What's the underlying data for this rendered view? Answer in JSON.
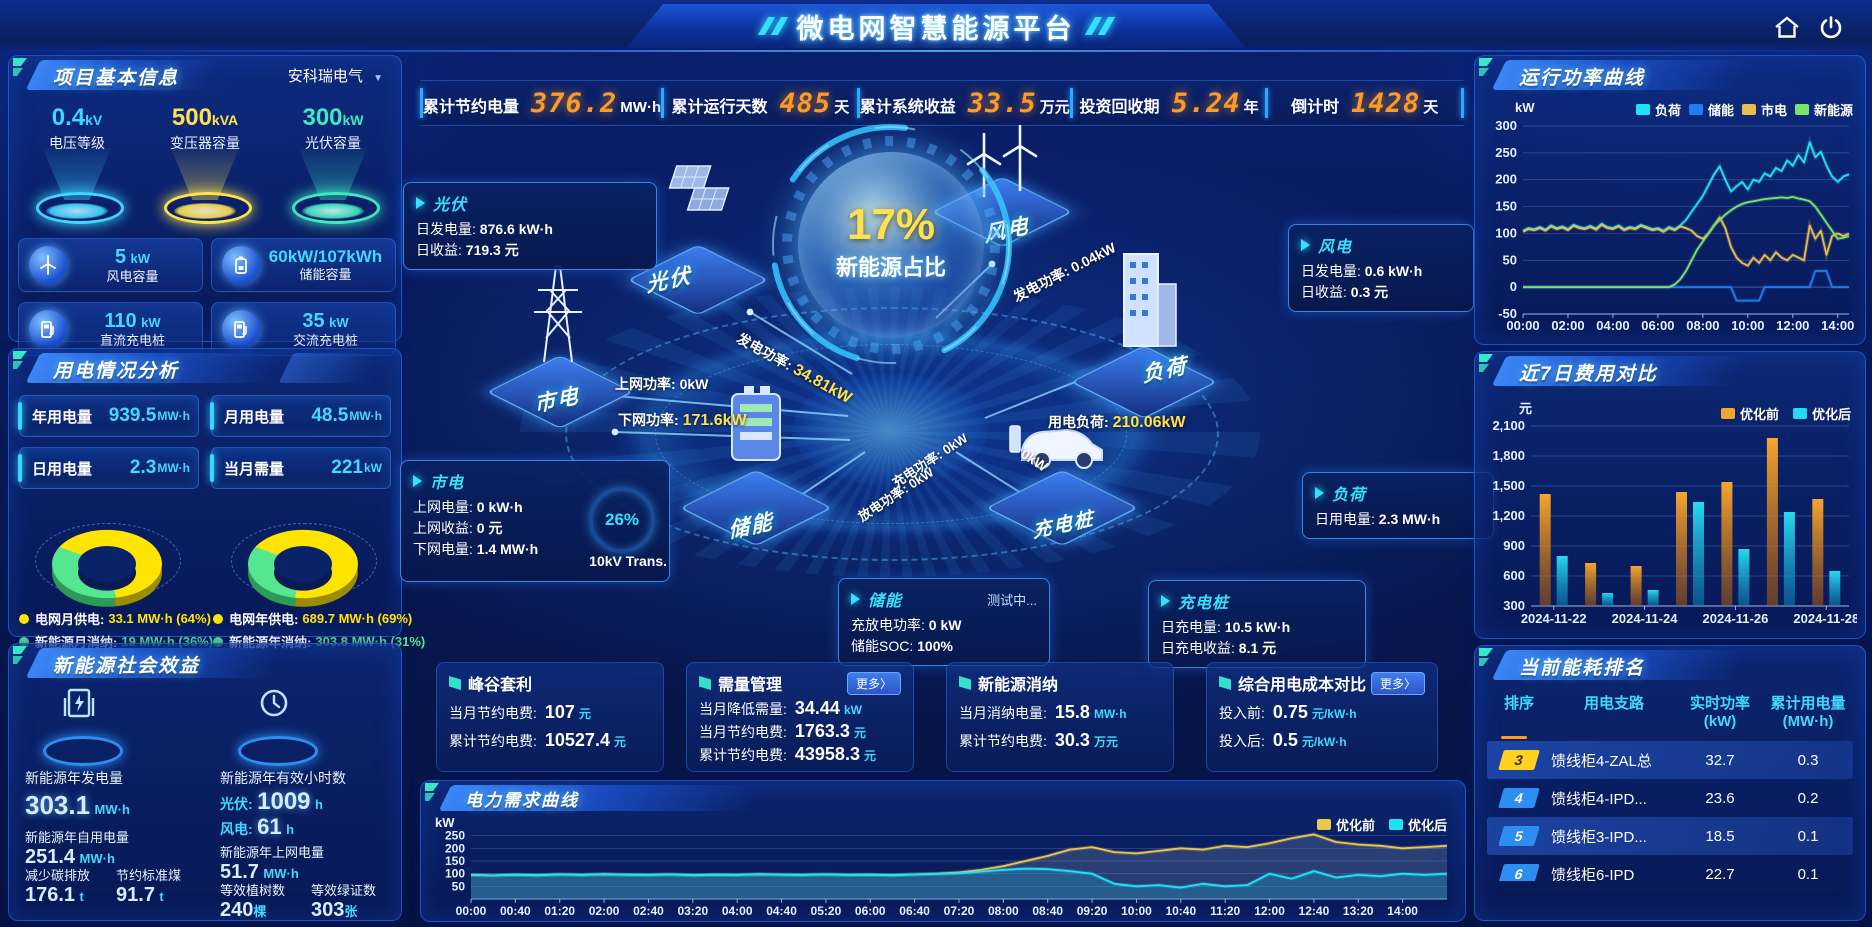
{
  "header": {
    "title": "微电网智慧能源平台"
  },
  "top_stats": [
    {
      "label": "累计节约电量",
      "value": "376.2",
      "unit": "MW·h"
    },
    {
      "label": "累计运行天数",
      "value": "485",
      "unit": "天"
    },
    {
      "label": "累计系统收益",
      "value": "33.5",
      "unit": "万元"
    },
    {
      "label": "投资回收期",
      "value": "5.24",
      "unit": "年"
    },
    {
      "label": "倒计时",
      "value": "1428",
      "unit": "天"
    }
  ],
  "project_info": {
    "title": "项目基本信息",
    "company": "安科瑞电气",
    "pedestals": [
      {
        "value": "0.4",
        "unit": "kV",
        "label": "电压等级",
        "color": "#3fd6ff"
      },
      {
        "value": "500",
        "unit": "kVA",
        "label": "变压器容量",
        "color": "#ffe14d"
      },
      {
        "value": "300",
        "unit": "kW",
        "label": "光伏容量",
        "color": "#3fe8c0"
      }
    ],
    "cards": [
      {
        "value": "5",
        "unit": "kW",
        "label": "风电容量"
      },
      {
        "value": "60kW/107kWh",
        "unit": "",
        "label": "储能容量"
      },
      {
        "value": "110",
        "unit": "kW",
        "label": "直流充电桩"
      },
      {
        "value": "35",
        "unit": "kW",
        "label": "交流充电桩"
      }
    ]
  },
  "power_usage": {
    "title": "用电情况分析",
    "stats": [
      {
        "label": "年用电量",
        "value": "939.5",
        "unit": "MW·h"
      },
      {
        "label": "月用电量",
        "value": "48.5",
        "unit": "MW·h"
      },
      {
        "label": "日用电量",
        "value": "2.3",
        "unit": "MW·h"
      },
      {
        "label": "当月需量",
        "value": "221",
        "unit": "kW"
      }
    ],
    "month_legend": [
      {
        "label": "电网月供电:",
        "value": "33.1 MW·h (64%)",
        "color": "#ffe400"
      },
      {
        "label": "新能源月消纳:",
        "value": "19 MW·h (36%)",
        "color": "#57e690"
      }
    ],
    "year_legend": [
      {
        "label": "电网年供电:",
        "value": "689.7 MW·h (69%)",
        "color": "#ffe400"
      },
      {
        "label": "新能源年消纳:",
        "value": "303.8 MW·h (31%)",
        "color": "#57e690"
      }
    ]
  },
  "social": {
    "title": "新能源社会效益",
    "gen_label": "新能源年发电量",
    "gen_value": "303.1",
    "gen_unit": "MW·h",
    "hours_label": "新能源年有效小时数",
    "pv_label": "光伏:",
    "pv_value": "1009",
    "pv_unit": "h",
    "wind_label": "风电:",
    "wind_value": "61",
    "wind_unit": "h",
    "self_label": "新能源年自用电量",
    "self_value": "251.4",
    "self_unit": "MW·h",
    "co2_label": "减少碳排放",
    "co2_value": "176.1",
    "co2_unit": "t",
    "coal_label": "节约标准煤",
    "coal_value": "91.7",
    "coal_unit": "t",
    "export_label": "新能源年上网电量",
    "export_value": "51.7",
    "export_unit": "MW·h",
    "tree_label": "等效植树数",
    "tree_value": "240",
    "tree_unit": "棵",
    "cert_label": "等效绿证数",
    "cert_value": "303",
    "cert_unit": "张"
  },
  "diagram": {
    "center_value": "17%",
    "center_label": "新能源占比",
    "nodes": {
      "pv": "光伏",
      "wind": "风电",
      "grid": "市电",
      "load": "负荷",
      "storage": "储能",
      "charger": "充电桩"
    },
    "flows": {
      "pv_gen": {
        "label": "发电功率:",
        "value": "34.81kW"
      },
      "up": {
        "label": "上网功率:",
        "value": "0kW"
      },
      "down": {
        "label": "下网功率:",
        "value": "171.6kW"
      },
      "wind_gen": {
        "label": "发电功率:",
        "value": "0.04kW"
      },
      "load": {
        "label": "用电负荷:",
        "value": "210.06kW"
      },
      "charge": {
        "label": "充电功率:",
        "value": "0kW"
      },
      "discharge": {
        "label": "放电功率:",
        "value": "0kW"
      },
      "ev": {
        "label": "",
        "value": "0kW"
      }
    },
    "boxes": {
      "pv": {
        "title": "光伏",
        "r1l": "日发电量:",
        "r1v": "876.6 kW·h",
        "r2l": "日收益:",
        "r2v": "719.3 元"
      },
      "wind": {
        "title": "风电",
        "r1l": "日发电量:",
        "r1v": "0.6 kW·h",
        "r2l": "日收益:",
        "r2v": "0.3 元"
      },
      "grid": {
        "title": "市电",
        "r1l": "上网电量:",
        "r1v": "0 kW·h",
        "r2l": "上网收益:",
        "r2v": "0 元",
        "r3l": "下网电量:",
        "r3v": "1.4 MW·h"
      },
      "load": {
        "title": "负荷",
        "r1l": "日用电量:",
        "r1v": "2.3 MW·h"
      },
      "storage": {
        "title": "储能",
        "badge": "测试中...",
        "r1l": "充放电功率:",
        "r1v": "0 kW",
        "r2l": "储能SOC:",
        "r2v": "100%"
      },
      "charger": {
        "title": "充电桩",
        "r1l": "日充电量:",
        "r1v": "10.5 kW·h",
        "r2l": "日充电收益:",
        "r2v": "8.1 元"
      }
    },
    "transformer": {
      "percent": "26%",
      "label": "10kV Trans."
    }
  },
  "benefit_boxes": [
    {
      "title": "峰谷套利",
      "rows": [
        {
          "label": "当月节约电费:",
          "value": "107",
          "unit": "元"
        },
        {
          "label": "累计节约电费:",
          "value": "10527.4",
          "unit": "元"
        }
      ]
    },
    {
      "title": "需量管理",
      "more": "更多〉",
      "rows": [
        {
          "label": "当月降低需量:",
          "value": "34.44",
          "unit": "kW"
        },
        {
          "label": "当月节约电费:",
          "value": "1763.3",
          "unit": "元"
        },
        {
          "label": "累计节约电费:",
          "value": "43958.3",
          "unit": "元"
        }
      ]
    },
    {
      "title": "新能源消纳",
      "rows": [
        {
          "label": "当月消纳电量:",
          "value": "15.8",
          "unit": "MW·h"
        },
        {
          "label": "累计节约电费:",
          "value": "30.3",
          "unit": "万元"
        }
      ]
    },
    {
      "title": "综合用电成本对比",
      "more": "更多〉",
      "rows": [
        {
          "label": "投入前:",
          "value": "0.75",
          "unit": "元/kW·h"
        },
        {
          "label": "投入后:",
          "value": "0.5",
          "unit": "元/kW·h"
        }
      ]
    }
  ],
  "panels": {
    "run_power": "运行功率曲线",
    "cost": "近7日费用对比",
    "ranking": "当前能耗排名",
    "demand": "电力需求曲线"
  },
  "ranking": {
    "headers": [
      {
        "t": "排序",
        "u": ""
      },
      {
        "t": "用电支路",
        "u": ""
      },
      {
        "t": "实时功率",
        "u": "(kW)"
      },
      {
        "t": "累计用电量",
        "u": "(MW·h)"
      }
    ],
    "rows": [
      {
        "rank": "3",
        "branch": "馈线柜4-ZAL总",
        "power": "32.7",
        "energy": "0.3"
      },
      {
        "rank": "4",
        "branch": "馈线柜4-IPD...",
        "power": "23.6",
        "energy": "0.2"
      },
      {
        "rank": "5",
        "branch": "馈线柜3-IPD...",
        "power": "18.5",
        "energy": "0.1"
      },
      {
        "rank": "6",
        "branch": "馈线柜6-IPD",
        "power": "22.7",
        "energy": "0.1"
      }
    ]
  },
  "chart_data": [
    {
      "id": "run-power",
      "type": "line",
      "title": "运行功率曲线",
      "ylabel": "kW",
      "ylim": [
        -50,
        300
      ],
      "yticks": [
        300,
        250,
        200,
        150,
        100,
        50,
        0,
        -50
      ],
      "grid": true,
      "legend_position": "top",
      "xticks": [
        {
          "i": 0,
          "label": "00:00"
        },
        {
          "i": 8,
          "label": "02:00"
        },
        {
          "i": 16,
          "label": "04:00"
        },
        {
          "i": 24,
          "label": "06:00"
        },
        {
          "i": 32,
          "label": "08:00"
        },
        {
          "i": 40,
          "label": "10:00"
        },
        {
          "i": 48,
          "label": "12:00"
        },
        {
          "i": 56,
          "label": "14:00"
        }
      ],
      "series": [
        {
          "name": "负荷",
          "color": "#1ee3f7",
          "values": [
            105,
            110,
            108,
            112,
            107,
            115,
            110,
            113,
            108,
            116,
            112,
            110,
            114,
            109,
            118,
            112,
            110,
            115,
            108,
            112,
            110,
            116,
            112,
            108,
            110,
            105,
            112,
            108,
            115,
            125,
            140,
            155,
            170,
            190,
            210,
            225,
            200,
            178,
            188,
            196,
            182,
            200,
            196,
            212,
            206,
            222,
            216,
            236,
            226,
            246,
            232,
            270,
            242,
            252,
            226,
            206,
            196,
            206,
            210
          ]
        },
        {
          "name": "储能",
          "color": "#1f7df2",
          "values": [
            0,
            0,
            0,
            0,
            0,
            0,
            0,
            0,
            0,
            0,
            0,
            0,
            0,
            0,
            0,
            0,
            0,
            0,
            0,
            0,
            0,
            0,
            0,
            0,
            0,
            0,
            0,
            0,
            0,
            0,
            0,
            0,
            0,
            0,
            0,
            0,
            0,
            0,
            -25,
            -25,
            -25,
            -25,
            -25,
            0,
            0,
            0,
            0,
            0,
            0,
            0,
            0,
            0,
            30,
            30,
            30,
            0,
            0,
            0,
            0
          ]
        },
        {
          "name": "市电",
          "color": "#e9bd4e",
          "values": [
            103,
            108,
            106,
            110,
            105,
            113,
            108,
            111,
            106,
            114,
            110,
            108,
            112,
            107,
            116,
            110,
            108,
            113,
            106,
            110,
            108,
            114,
            110,
            106,
            108,
            103,
            110,
            106,
            113,
            110,
            105,
            95,
            90,
            100,
            115,
            130,
            110,
            75,
            55,
            45,
            40,
            55,
            45,
            60,
            50,
            65,
            55,
            50,
            60,
            55,
            50,
            115,
            90,
            105,
            60,
            95,
            100,
            95,
            100
          ]
        },
        {
          "name": "新能源",
          "color": "#7be36b",
          "values": [
            0,
            0,
            0,
            0,
            0,
            0,
            0,
            0,
            0,
            0,
            0,
            0,
            0,
            0,
            0,
            0,
            0,
            0,
            0,
            0,
            0,
            0,
            0,
            0,
            0,
            0,
            0,
            5,
            15,
            30,
            50,
            70,
            85,
            100,
            115,
            125,
            135,
            143,
            150,
            155,
            158,
            160,
            162,
            164,
            165,
            166,
            167,
            166,
            168,
            165,
            163,
            160,
            150,
            135,
            120,
            105,
            90,
            92,
            95
          ]
        }
      ]
    },
    {
      "id": "cost-bars",
      "type": "bar",
      "title": "近7日费用对比",
      "ylabel": "元",
      "ylim": [
        300,
        2100
      ],
      "grid": true,
      "legend_position": "top-right",
      "yticks": [
        {
          "v": 2100,
          "label": "2,100"
        },
        {
          "v": 1800,
          "label": "1,800"
        },
        {
          "v": 1500,
          "label": "1,500"
        },
        {
          "v": 1200,
          "label": "1,200"
        },
        {
          "v": 900,
          "label": "900"
        },
        {
          "v": 600,
          "label": "600"
        },
        {
          "v": 300,
          "label": "300"
        }
      ],
      "categories": [
        "2024-11-22",
        "2024-11-23",
        "2024-11-24",
        "2024-11-25",
        "2024-11-26",
        "2024-11-27",
        "2024-11-28"
      ],
      "xtick_labels": [
        {
          "i": 0,
          "label": "2024-11-22"
        },
        {
          "i": 2,
          "label": "2024-11-24"
        },
        {
          "i": 4,
          "label": "2024-11-26"
        },
        {
          "i": 6,
          "label": "2024-11-28"
        }
      ],
      "series": [
        {
          "name": "优化前",
          "color": "#f5a62e",
          "color2": "#a85a12",
          "values": [
            1420,
            730,
            700,
            1440,
            1540,
            1980,
            1370
          ]
        },
        {
          "name": "优化后",
          "color": "#29d9f2",
          "color2": "#0f84b8",
          "values": [
            800,
            430,
            460,
            1340,
            870,
            1240,
            650
          ]
        }
      ]
    },
    {
      "id": "demand-curve",
      "type": "line",
      "title": "电力需求曲线",
      "ylabel": "kW",
      "ylim": [
        0,
        300
      ],
      "yticks": [
        250,
        200,
        150,
        100,
        50
      ],
      "grid": true,
      "legend_position": "top-right",
      "xticks": [
        {
          "i": 0,
          "label": "00:00"
        },
        {
          "i": 2,
          "label": "00:40"
        },
        {
          "i": 4,
          "label": "01:20"
        },
        {
          "i": 6,
          "label": "02:00"
        },
        {
          "i": 8,
          "label": "02:40"
        },
        {
          "i": 10,
          "label": "03:20"
        },
        {
          "i": 12,
          "label": "04:00"
        },
        {
          "i": 14,
          "label": "04:40"
        },
        {
          "i": 16,
          "label": "05:20"
        },
        {
          "i": 18,
          "label": "06:00"
        },
        {
          "i": 20,
          "label": "06:40"
        },
        {
          "i": 22,
          "label": "07:20"
        },
        {
          "i": 24,
          "label": "08:00"
        },
        {
          "i": 26,
          "label": "08:40"
        },
        {
          "i": 28,
          "label": "09:20"
        },
        {
          "i": 30,
          "label": "10:00"
        },
        {
          "i": 32,
          "label": "10:40"
        },
        {
          "i": 34,
          "label": "11:20"
        },
        {
          "i": 36,
          "label": "12:00"
        },
        {
          "i": 38,
          "label": "12:40"
        },
        {
          "i": 40,
          "label": "13:20"
        },
        {
          "i": 42,
          "label": "14:00"
        }
      ],
      "series": [
        {
          "name": "优化前",
          "color": "#e9c84e",
          "fill": "rgba(120,140,170,0.30)",
          "values": [
            95,
            93,
            96,
            94,
            97,
            95,
            98,
            96,
            95,
            97,
            94,
            96,
            95,
            98,
            96,
            95,
            97,
            95,
            96,
            94,
            97,
            100,
            105,
            115,
            130,
            150,
            170,
            195,
            205,
            185,
            180,
            190,
            200,
            195,
            210,
            205,
            220,
            240,
            255,
            225,
            215,
            210,
            200,
            205,
            210
          ]
        },
        {
          "name": "优化后",
          "color": "#1ee3f7",
          "fill": "rgba(30,190,230,0.25)",
          "values": [
            95,
            93,
            96,
            94,
            97,
            95,
            98,
            96,
            95,
            97,
            94,
            96,
            95,
            98,
            96,
            95,
            97,
            95,
            96,
            94,
            97,
            99,
            102,
            108,
            115,
            120,
            118,
            110,
            100,
            60,
            50,
            55,
            45,
            60,
            50,
            55,
            100,
            80,
            110,
            85,
            95,
            90,
            100,
            95,
            100
          ]
        }
      ]
    },
    {
      "id": "month-donut",
      "type": "pie",
      "start": -60,
      "slices": [
        {
          "name": "电网月供电",
          "pct": 64,
          "color": "#ffe400",
          "side": "#9c8c00"
        },
        {
          "name": "新能源月消纳",
          "pct": 36,
          "color": "#57e690",
          "side": "#2e9a57"
        }
      ]
    },
    {
      "id": "year-donut",
      "type": "pie",
      "start": -60,
      "slices": [
        {
          "name": "电网年供电",
          "pct": 69,
          "color": "#ffe400",
          "side": "#9c8c00"
        },
        {
          "name": "新能源年消纳",
          "pct": 31,
          "color": "#57e690",
          "side": "#2e9a57"
        }
      ]
    }
  ]
}
